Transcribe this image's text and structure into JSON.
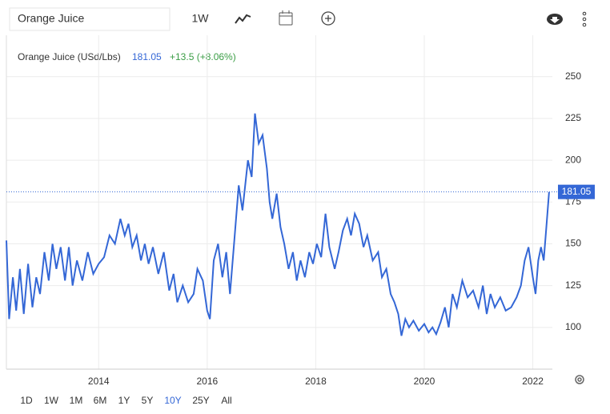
{
  "header": {
    "search": "Orange Juice",
    "interval": "1W"
  },
  "chart_data": {
    "type": "line",
    "change": "+13.5 (+8.06%)",
    "x": [
      2012.3,
      2012.35,
      2012.42,
      2012.48,
      2012.55,
      2012.62,
      2012.7,
      2012.78,
      2012.85,
      2012.92,
      2013.0,
      2013.08,
      2013.15,
      2013.22,
      2013.3,
      2013.38,
      2013.45,
      2013.52,
      2013.6,
      2013.7,
      2013.8,
      2013.9,
      2014.0,
      2014.1,
      2014.2,
      2014.3,
      2014.4,
      2014.48,
      2014.55,
      2014.62,
      2014.7,
      2014.78,
      2014.85,
      2014.92,
      2015.0,
      2015.1,
      2015.2,
      2015.3,
      2015.38,
      2015.45,
      2015.55,
      2015.65,
      2015.75,
      2015.82,
      2015.92,
      2016.0,
      2016.05,
      2016.12,
      2016.2,
      2016.28,
      2016.35,
      2016.42,
      2016.5,
      2016.58,
      2016.65,
      2016.75,
      2016.82,
      2016.88,
      2016.95,
      2017.02,
      2017.1,
      2017.15,
      2017.2,
      2017.28,
      2017.35,
      2017.42,
      2017.5,
      2017.58,
      2017.65,
      2017.72,
      2017.8,
      2017.88,
      2017.95,
      2018.02,
      2018.1,
      2018.18,
      2018.25,
      2018.35,
      2018.42,
      2018.5,
      2018.58,
      2018.65,
      2018.72,
      2018.8,
      2018.88,
      2018.95,
      2019.05,
      2019.15,
      2019.22,
      2019.3,
      2019.38,
      2019.45,
      2019.52,
      2019.58,
      2019.65,
      2019.72,
      2019.8,
      2019.9,
      2020.0,
      2020.08,
      2020.15,
      2020.22,
      2020.3,
      2020.38,
      2020.45,
      2020.52,
      2020.6,
      2020.7,
      2020.8,
      2020.9,
      2021.0,
      2021.08,
      2021.15,
      2021.22,
      2021.3,
      2021.4,
      2021.5,
      2021.6,
      2021.7,
      2021.78,
      2021.85,
      2021.92,
      2022.0,
      2022.05,
      2022.1,
      2022.15,
      2022.2,
      2022.25,
      2022.3
    ],
    "series": [
      {
        "name": "Orange Juice (USd/Lbs)",
        "color": "#3467d6",
        "values": [
          152,
          105,
          130,
          110,
          135,
          108,
          138,
          112,
          130,
          120,
          145,
          128,
          150,
          135,
          148,
          128,
          148,
          125,
          140,
          128,
          145,
          132,
          138,
          142,
          155,
          150,
          165,
          155,
          162,
          148,
          155,
          140,
          150,
          138,
          148,
          132,
          145,
          122,
          132,
          115,
          125,
          115,
          120,
          135,
          128,
          110,
          105,
          140,
          150,
          130,
          145,
          120,
          152,
          185,
          170,
          200,
          190,
          228,
          210,
          215,
          195,
          175,
          165,
          180,
          160,
          150,
          135,
          145,
          128,
          140,
          130,
          145,
          138,
          150,
          142,
          168,
          148,
          135,
          145,
          158,
          165,
          155,
          168,
          162,
          148,
          155,
          140,
          145,
          130,
          135,
          120,
          115,
          108,
          95,
          105,
          100,
          104,
          98,
          102,
          97,
          100,
          96,
          103,
          112,
          100,
          120,
          112,
          128,
          118,
          122,
          112,
          125,
          108,
          120,
          112,
          118,
          110,
          112,
          118,
          125,
          140,
          148,
          130,
          120,
          140,
          148,
          140,
          160,
          181.05
        ]
      }
    ],
    "xlim": [
      2012.3,
      2022.36
    ],
    "ylim": [
      75,
      270
    ],
    "xticks": [
      2014,
      2016,
      2018,
      2020,
      2022
    ],
    "yticks": [
      100,
      125,
      150,
      175,
      200,
      225,
      250
    ],
    "grid": true
  },
  "ranges": [
    "1D",
    "1W",
    "1M",
    "6M",
    "1Y",
    "5Y",
    "10Y",
    "25Y",
    "All"
  ],
  "active_range": "10Y"
}
